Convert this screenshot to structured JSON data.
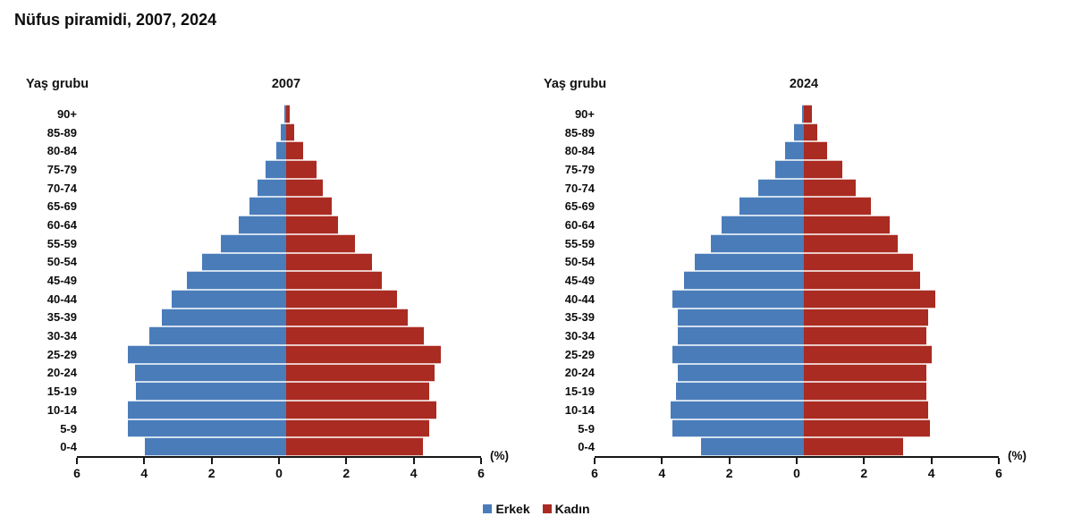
{
  "page_title": "Nüfus piramidi, 2007, 2024",
  "colors": {
    "male": "#4a7cba",
    "female": "#aa2b21",
    "axis": "#161616"
  },
  "legend": {
    "male_label": "Erkek",
    "female_label": "Kadın"
  },
  "chart_data": [
    {
      "type": "bar",
      "variant": "population-pyramid",
      "title": "2007",
      "ylabel": "Yaş grubu",
      "xlabel": "(%)",
      "xlim": [
        -6,
        6
      ],
      "x_ticks": [
        "6",
        "4",
        "2",
        "0",
        "2",
        "4",
        "6"
      ],
      "grid": false,
      "categories": [
        "90+",
        "85-89",
        "80-84",
        "75-79",
        "70-74",
        "65-69",
        "60-64",
        "55-59",
        "50-54",
        "45-49",
        "40-44",
        "35-39",
        "30-34",
        "25-29",
        "20-24",
        "15-19",
        "10-14",
        "5-9",
        "0-4"
      ],
      "series": [
        {
          "name": "Erkek",
          "values": [
            0.05,
            0.15,
            0.3,
            0.6,
            0.85,
            1.1,
            1.4,
            1.95,
            2.5,
            2.95,
            3.4,
            3.7,
            4.05,
            4.7,
            4.5,
            4.45,
            4.7,
            4.7,
            4.2
          ]
        },
        {
          "name": "Kadın",
          "values": [
            0.1,
            0.25,
            0.5,
            0.9,
            1.1,
            1.35,
            1.55,
            2.05,
            2.55,
            2.85,
            3.3,
            3.6,
            4.1,
            4.6,
            4.4,
            4.25,
            4.45,
            4.25,
            4.05
          ]
        }
      ]
    },
    {
      "type": "bar",
      "variant": "population-pyramid",
      "title": "2024",
      "ylabel": "Yaş grubu",
      "xlabel": "(%)",
      "xlim": [
        -6,
        6
      ],
      "x_ticks": [
        "6",
        "4",
        "2",
        "0",
        "2",
        "4",
        "6"
      ],
      "grid": false,
      "categories": [
        "90+",
        "85-89",
        "80-84",
        "75-79",
        "70-74",
        "65-69",
        "60-64",
        "55-59",
        "50-54",
        "45-49",
        "40-44",
        "35-39",
        "30-34",
        "25-29",
        "20-24",
        "15-19",
        "10-14",
        "5-9",
        "0-4"
      ],
      "series": [
        {
          "name": "Erkek",
          "values": [
            0.05,
            0.3,
            0.55,
            0.85,
            1.35,
            1.9,
            2.45,
            2.75,
            3.25,
            3.55,
            3.9,
            3.75,
            3.75,
            3.9,
            3.75,
            3.8,
            3.95,
            3.9,
            3.05
          ]
        },
        {
          "name": "Kadın",
          "values": [
            0.25,
            0.4,
            0.7,
            1.15,
            1.55,
            2.0,
            2.55,
            2.8,
            3.25,
            3.45,
            3.9,
            3.7,
            3.65,
            3.8,
            3.65,
            3.65,
            3.7,
            3.75,
            2.95
          ]
        }
      ]
    }
  ]
}
